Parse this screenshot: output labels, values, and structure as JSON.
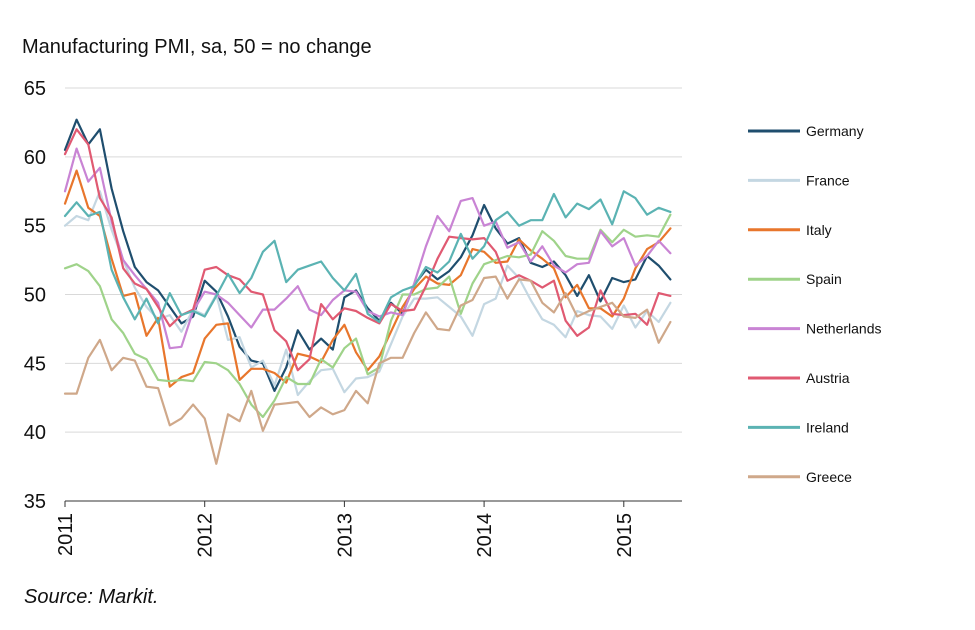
{
  "chart_data": {
    "type": "line",
    "title": "Manufacturing PMI, sa, 50 = no change",
    "source": "Source: Markit.",
    "ylim": [
      35,
      65
    ],
    "yticks": [
      35,
      40,
      45,
      50,
      55,
      60,
      65
    ],
    "xticks": [
      "2011",
      "2012",
      "2013",
      "2014",
      "2015"
    ],
    "x": [
      "2011-01",
      "2011-02",
      "2011-03",
      "2011-04",
      "2011-05",
      "2011-06",
      "2011-07",
      "2011-08",
      "2011-09",
      "2011-10",
      "2011-11",
      "2011-12",
      "2012-01",
      "2012-02",
      "2012-03",
      "2012-04",
      "2012-05",
      "2012-06",
      "2012-07",
      "2012-08",
      "2012-09",
      "2012-10",
      "2012-11",
      "2012-12",
      "2013-01",
      "2013-02",
      "2013-03",
      "2013-04",
      "2013-05",
      "2013-06",
      "2013-07",
      "2013-08",
      "2013-09",
      "2013-10",
      "2013-11",
      "2013-12",
      "2014-01",
      "2014-02",
      "2014-03",
      "2014-04",
      "2014-05",
      "2014-06",
      "2014-07",
      "2014-08",
      "2014-09",
      "2014-10",
      "2014-11",
      "2014-12",
      "2015-01",
      "2015-02",
      "2015-03",
      "2015-04",
      "2015-05"
    ],
    "grid": "horizontal",
    "legend": "right",
    "series": [
      {
        "name": "Germany",
        "color": "#1f4e6e",
        "values": [
          60.5,
          62.7,
          60.9,
          62.0,
          57.7,
          54.6,
          52.0,
          50.9,
          50.3,
          49.1,
          47.9,
          48.4,
          51.0,
          50.2,
          48.4,
          46.2,
          45.2,
          45.0,
          43.0,
          44.7,
          47.4,
          46.0,
          46.8,
          46.0,
          49.8,
          50.3,
          49.0,
          48.1,
          49.4,
          48.6,
          50.7,
          51.8,
          51.1,
          51.7,
          52.7,
          54.3,
          56.5,
          54.8,
          53.7,
          54.1,
          52.3,
          52.0,
          52.4,
          51.4,
          49.9,
          51.4,
          49.5,
          51.2,
          50.9,
          51.1,
          52.8,
          52.1,
          51.1
        ]
      },
      {
        "name": "France",
        "color": "#c4d7e2",
        "values": [
          55.0,
          55.7,
          55.4,
          57.5,
          54.7,
          52.5,
          50.5,
          49.1,
          48.2,
          48.5,
          47.3,
          48.9,
          48.5,
          50.0,
          46.7,
          46.9,
          44.7,
          45.2,
          43.4,
          46.0,
          42.7,
          43.7,
          44.5,
          44.6,
          42.9,
          43.9,
          44.0,
          44.4,
          46.4,
          48.4,
          49.7,
          49.7,
          49.8,
          49.1,
          48.4,
          47.0,
          49.3,
          49.7,
          52.1,
          51.2,
          49.6,
          48.2,
          47.8,
          46.9,
          48.8,
          48.5,
          48.4,
          47.5,
          49.2,
          47.6,
          48.8,
          48.0,
          49.4
        ]
      },
      {
        "name": "Italy",
        "color": "#e8762c",
        "values": [
          56.6,
          59.0,
          56.3,
          55.7,
          52.6,
          49.9,
          50.1,
          47.0,
          48.3,
          43.3,
          44.0,
          44.3,
          46.8,
          47.8,
          47.9,
          43.8,
          44.6,
          44.6,
          44.3,
          43.6,
          45.7,
          45.5,
          45.1,
          46.7,
          47.8,
          45.8,
          44.5,
          45.5,
          47.3,
          49.1,
          50.4,
          51.3,
          50.8,
          50.7,
          51.4,
          53.3,
          53.1,
          52.3,
          52.4,
          54.0,
          53.2,
          52.6,
          51.9,
          49.8,
          50.7,
          49.0,
          49.0,
          48.4,
          49.7,
          51.9,
          53.3,
          53.8,
          54.8
        ]
      },
      {
        "name": "Spain",
        "color": "#9fd38a",
        "values": [
          51.9,
          52.2,
          51.7,
          50.6,
          48.2,
          47.2,
          45.7,
          45.3,
          43.8,
          43.7,
          43.8,
          43.7,
          45.1,
          45.0,
          44.5,
          43.5,
          42.0,
          41.1,
          42.3,
          44.0,
          43.5,
          43.5,
          45.3,
          44.7,
          46.1,
          46.8,
          44.2,
          44.7,
          48.1,
          50.0,
          50.0,
          50.4,
          50.5,
          51.3,
          48.6,
          50.8,
          52.2,
          52.5,
          52.8,
          52.7,
          52.9,
          54.6,
          53.9,
          52.8,
          52.6,
          52.6,
          54.7,
          53.8,
          54.7,
          54.2,
          54.3,
          54.2,
          55.8
        ]
      },
      {
        "name": "Netherlands",
        "color": "#c984d4",
        "values": [
          57.5,
          60.6,
          58.2,
          59.2,
          55.3,
          52.5,
          51.4,
          50.4,
          49.4,
          46.1,
          46.2,
          48.8,
          50.2,
          50.0,
          49.4,
          48.5,
          47.6,
          48.9,
          48.9,
          49.7,
          50.6,
          48.9,
          48.5,
          49.6,
          50.3,
          50.2,
          48.8,
          48.4,
          48.7,
          48.5,
          50.8,
          53.5,
          55.7,
          54.6,
          56.8,
          57.0,
          55.0,
          55.3,
          53.4,
          53.8,
          52.4,
          53.5,
          52.1,
          51.6,
          52.2,
          52.3,
          54.6,
          53.5,
          54.1,
          52.1,
          52.8,
          53.9,
          53.0
        ]
      },
      {
        "name": "Austria",
        "color": "#e05a72",
        "values": [
          60.2,
          62.0,
          60.9,
          57.0,
          55.6,
          51.9,
          50.8,
          50.4,
          49.1,
          47.7,
          48.5,
          48.9,
          51.8,
          52.0,
          51.4,
          51.1,
          50.2,
          50.0,
          47.4,
          46.6,
          44.5,
          45.3,
          49.3,
          48.2,
          49.0,
          48.8,
          48.3,
          47.9,
          49.3,
          48.8,
          48.9,
          50.6,
          52.6,
          54.2,
          54.1,
          54.0,
          54.1,
          53.1,
          51.0,
          51.4,
          51.0,
          50.5,
          51.0,
          48.1,
          47.0,
          47.6,
          50.3,
          48.6,
          48.5,
          48.6,
          47.8,
          50.1,
          49.9
        ]
      },
      {
        "name": "Ireland",
        "color": "#5bb3b3",
        "values": [
          55.7,
          56.7,
          55.7,
          56.0,
          51.8,
          49.8,
          48.2,
          49.7,
          47.9,
          50.1,
          48.5,
          48.8,
          48.4,
          49.9,
          51.5,
          50.1,
          51.2,
          53.1,
          53.9,
          50.9,
          51.8,
          52.1,
          52.4,
          51.2,
          50.3,
          51.5,
          48.6,
          48.0,
          49.8,
          50.3,
          50.6,
          52.0,
          51.6,
          52.4,
          54.4,
          52.6,
          53.5,
          55.4,
          56.0,
          55.0,
          55.4,
          55.4,
          57.3,
          55.6,
          56.6,
          56.2,
          56.9,
          55.1,
          57.5,
          57.0,
          55.8,
          56.3,
          56.0
        ]
      },
      {
        "name": "Greece",
        "color": "#cfa88a",
        "values": [
          42.8,
          42.8,
          45.4,
          46.7,
          44.5,
          45.4,
          45.2,
          43.3,
          43.2,
          40.5,
          41.0,
          42.0,
          41.0,
          37.7,
          41.3,
          40.8,
          43.0,
          40.1,
          42.0,
          42.1,
          42.2,
          41.1,
          41.8,
          41.3,
          41.6,
          43.0,
          42.1,
          45.0,
          45.4,
          45.4,
          47.2,
          48.7,
          47.5,
          47.4,
          49.2,
          49.6,
          51.2,
          51.3,
          49.7,
          51.1,
          51.0,
          49.4,
          48.7,
          50.1,
          48.4,
          48.8,
          49.1,
          49.4,
          48.4,
          48.3,
          48.9,
          46.5,
          48.0
        ]
      }
    ]
  }
}
